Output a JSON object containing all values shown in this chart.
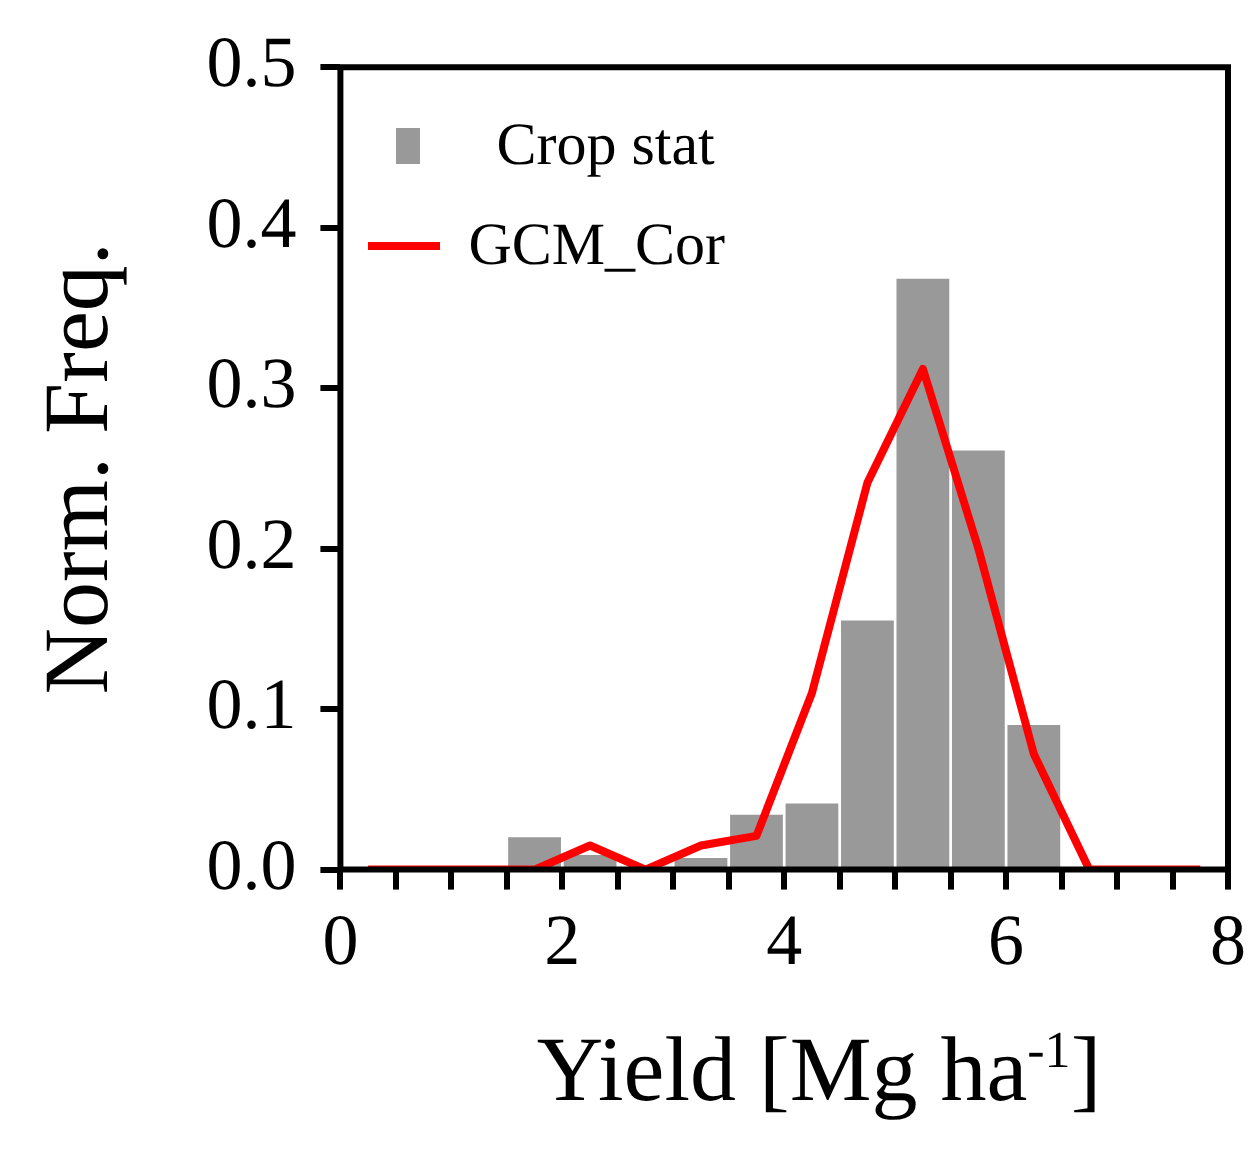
{
  "chart_data": {
    "type": "histogram",
    "xlabel": "Yield [Mg ha$^{-1}$]",
    "ylabel": "Norm. Freq.",
    "bins": [
      1.5,
      2,
      2.5,
      3,
      3.5,
      4,
      4.5,
      5,
      5.5,
      6,
      6.5
    ],
    "series": [
      {
        "name": "Crop stat",
        "color": "#999999",
        "values": [
          0.021,
          0.01,
          0,
          0.008,
          0.035,
          0.042,
          0.156,
          0.369,
          0.262,
          0.091
        ]
      },
      {
        "name": "GCM_Cor",
        "type": "line",
        "color": "#ff0000",
        "x": [
          0.25,
          0.75,
          1.25,
          1.75,
          2.25,
          2.75,
          3.25,
          3.75,
          4.25,
          4.75,
          5.25,
          5.75,
          6.25,
          6.75,
          7.25,
          7.75
        ],
        "values": [
          0,
          0,
          0,
          0,
          0.015,
          0,
          0.015,
          0.021,
          0.11,
          0.241,
          0.312,
          0.2,
          0.072,
          0,
          0,
          0
        ]
      }
    ],
    "xlim": [
      0,
      8
    ],
    "xticks": [
      0,
      {
        "value": 0.5,
        "label": null
      },
      {
        "value": 1,
        "label": null
      },
      {
        "value": 1.5,
        "label": null
      },
      2,
      {
        "value": 2.5,
        "label": null
      },
      {
        "value": 3,
        "label": null
      },
      {
        "value": 3.5,
        "label": null
      },
      4,
      {
        "value": 4.5,
        "label": null
      },
      {
        "value": 5,
        "label": null
      },
      {
        "value": 5.5,
        "label": null
      },
      6,
      {
        "value": 6.5,
        "label": null
      },
      {
        "value": 7,
        "label": null
      },
      {
        "value": 7.5,
        "label": null
      },
      8
    ],
    "ylim": [
      0,
      0.5
    ],
    "yticks": [
      {
        "value": 0,
        "label": "0.0"
      },
      {
        "value": 0.1,
        "label": "0.1"
      },
      {
        "value": 0.2,
        "label": "0.2"
      },
      {
        "value": 0.3,
        "label": "0.3"
      },
      {
        "value": 0.4,
        "label": "0.4"
      },
      {
        "value": 0.5,
        "label": "0.5"
      }
    ],
    "legend": "top left",
    "grid": false,
    "line_style": "solid",
    "marker": "none"
  }
}
